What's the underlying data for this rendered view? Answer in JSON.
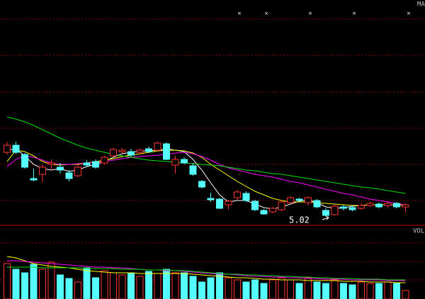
{
  "chart_data": [
    {
      "type": "candlestick",
      "legend_label": "MA",
      "legend_marks": [
        "×",
        "×",
        "×",
        "×",
        "×"
      ],
      "annotation": "5.02",
      "up_color": "#ff3232",
      "down_color": "#54fcfc",
      "ylim": [
        4.89,
        8.07
      ],
      "open": [
        5.92,
        6.02,
        5.89,
        5.55,
        5.61,
        5.75,
        5.71,
        5.63,
        5.59,
        5.77,
        5.79,
        5.77,
        5.87,
        5.93,
        5.93,
        5.92,
        5.97,
        5.95,
        6.04,
        5.74,
        5.82,
        5.73,
        5.51,
        5.27,
        5.26,
        5.18,
        5.28,
        5.34,
        5.23,
        5.1,
        5.08,
        5.11,
        5.21,
        5.26,
        5.21,
        5.24,
        5.1,
        5.04,
        5.15,
        5.14,
        5.13,
        5.17,
        5.19,
        5.17,
        5.2,
        5.15
      ],
      "high": [
        6.07,
        6.07,
        5.91,
        5.69,
        5.75,
        5.82,
        5.77,
        5.67,
        5.75,
        5.81,
        5.82,
        5.87,
        5.98,
        5.98,
        5.97,
        5.97,
        6.0,
        6.07,
        6.06,
        5.87,
        5.85,
        5.77,
        5.53,
        5.35,
        5.28,
        5.25,
        5.39,
        5.37,
        5.25,
        5.12,
        5.15,
        5.24,
        5.3,
        5.28,
        5.3,
        5.26,
        5.13,
        5.18,
        5.18,
        5.17,
        5.2,
        5.22,
        5.21,
        5.22,
        5.22,
        5.2
      ],
      "low": [
        5.89,
        5.9,
        5.69,
        5.51,
        5.5,
        5.67,
        5.62,
        5.51,
        5.57,
        5.71,
        5.69,
        5.75,
        5.85,
        5.9,
        5.85,
        5.89,
        5.91,
        5.93,
        5.81,
        5.62,
        5.75,
        5.59,
        5.41,
        5.22,
        5.12,
        5.11,
        5.25,
        5.22,
        5.09,
        5.04,
        5.06,
        5.09,
        5.19,
        5.22,
        5.17,
        5.13,
        5.02,
        5.03,
        5.1,
        5.09,
        5.11,
        5.15,
        5.13,
        5.14,
        5.13,
        5.07
      ],
      "close": [
        6.02,
        5.92,
        5.71,
        5.53,
        5.71,
        5.77,
        5.67,
        5.55,
        5.71,
        5.74,
        5.71,
        5.85,
        5.96,
        5.95,
        5.88,
        5.95,
        5.93,
        6.05,
        5.82,
        5.82,
        5.77,
        5.61,
        5.43,
        5.25,
        5.13,
        5.23,
        5.36,
        5.24,
        5.11,
        5.05,
        5.13,
        5.22,
        5.28,
        5.24,
        5.28,
        5.15,
        5.03,
        5.16,
        5.13,
        5.11,
        5.17,
        5.2,
        5.15,
        5.2,
        5.15,
        5.18
      ],
      "series": [
        {
          "color": "#ffffff",
          "values": [
            5.95,
            5.97,
            5.87,
            5.75,
            5.69,
            5.67,
            5.69,
            5.65,
            5.67,
            5.72,
            5.75,
            5.79,
            5.85,
            5.9,
            5.92,
            5.94,
            5.94,
            5.95,
            5.97,
            5.95,
            5.93,
            5.82,
            5.67,
            5.49,
            5.32,
            5.22,
            5.24,
            5.24,
            5.19,
            5.14,
            5.12,
            5.15,
            5.19,
            5.23,
            5.25,
            5.21,
            5.15,
            5.13,
            5.14,
            5.16,
            5.17,
            5.18,
            5.18,
            5.18,
            5.18,
            5.17
          ]
        },
        {
          "color": "#ffff00",
          "values": [
            5.79,
            5.95,
            5.93,
            5.87,
            5.79,
            5.75,
            5.74,
            5.75,
            5.75,
            5.77,
            5.79,
            5.81,
            5.83,
            5.86,
            5.88,
            5.9,
            5.92,
            5.94,
            5.95,
            5.95,
            5.94,
            5.91,
            5.85,
            5.75,
            5.67,
            5.59,
            5.51,
            5.44,
            5.37,
            5.32,
            5.27,
            5.24,
            5.22,
            5.22,
            5.22,
            5.21,
            5.2,
            5.19,
            5.18,
            5.17,
            5.17,
            5.18,
            5.18,
            5.18,
            5.18,
            5.17
          ]
        },
        {
          "color": "#ff00ff",
          "values": [
            5.72,
            5.82,
            5.87,
            5.85,
            5.81,
            5.77,
            5.75,
            5.75,
            5.76,
            5.77,
            5.78,
            5.79,
            5.81,
            5.83,
            5.85,
            5.86,
            5.87,
            5.88,
            5.89,
            5.91,
            5.92,
            5.9,
            5.86,
            5.81,
            5.75,
            5.7,
            5.67,
            5.64,
            5.61,
            5.59,
            5.57,
            5.54,
            5.51,
            5.49,
            5.46,
            5.43,
            5.4,
            5.37,
            5.34,
            5.32,
            5.29,
            5.26,
            5.24,
            5.22,
            5.2,
            5.18
          ]
        },
        {
          "color": "#00e000",
          "values": [
            6.42,
            6.39,
            6.35,
            6.3,
            6.24,
            6.18,
            6.12,
            6.07,
            6.02,
            5.98,
            5.95,
            5.92,
            5.89,
            5.87,
            5.85,
            5.83,
            5.81,
            5.8,
            5.79,
            5.78,
            5.77,
            5.76,
            5.75,
            5.74,
            5.73,
            5.71,
            5.69,
            5.67,
            5.66,
            5.64,
            5.62,
            5.61,
            5.59,
            5.57,
            5.55,
            5.53,
            5.51,
            5.49,
            5.47,
            5.45,
            5.43,
            5.42,
            5.4,
            5.38,
            5.36,
            5.34
          ]
        }
      ]
    },
    {
      "type": "volume",
      "legend_label": "VOL",
      "ylim": [
        0,
        104
      ],
      "values": [
        50,
        42,
        37,
        49,
        42,
        52,
        34,
        29,
        24,
        44,
        30,
        40,
        37,
        34,
        37,
        32,
        39,
        36,
        42,
        37,
        37,
        32,
        24,
        30,
        37,
        30,
        27,
        24,
        27,
        22,
        27,
        30,
        27,
        22,
        30,
        24,
        22,
        27,
        22,
        20,
        24,
        22,
        22,
        24,
        22,
        12
      ],
      "series": [
        {
          "color": "#ffff00",
          "values": [
            60,
            58,
            54,
            50,
            48,
            46,
            45,
            44,
            42,
            40,
            39,
            38,
            37,
            37,
            37,
            36,
            36,
            36,
            36,
            36,
            36,
            35,
            34,
            33,
            32,
            31,
            30,
            30,
            29,
            28,
            28,
            27,
            27,
            27,
            26,
            26,
            26,
            26,
            25,
            25,
            25,
            24,
            24,
            24,
            23,
            23
          ]
        },
        {
          "color": "#ff00ff",
          "values": [
            54,
            54,
            53,
            52,
            51,
            50,
            49,
            48,
            47,
            46,
            45,
            45,
            44,
            44,
            43,
            42,
            41,
            41,
            40,
            40,
            39,
            38,
            37,
            36,
            35,
            35,
            34,
            33,
            32,
            32,
            31,
            31,
            30,
            30,
            29,
            29,
            28,
            28,
            28,
            27,
            27,
            27,
            27,
            26,
            26,
            26
          ]
        },
        {
          "color": "#00e000",
          "values": [
            45,
            45,
            45,
            45,
            44,
            44,
            44,
            44,
            44,
            43,
            43,
            43,
            43,
            42,
            42,
            42,
            41,
            41,
            41,
            40,
            40,
            39,
            38,
            37,
            36,
            35,
            35,
            34,
            34,
            33,
            33,
            32,
            32,
            31,
            31,
            30,
            30,
            29,
            29,
            29,
            28,
            28,
            28,
            27,
            27,
            27
          ]
        }
      ]
    }
  ]
}
